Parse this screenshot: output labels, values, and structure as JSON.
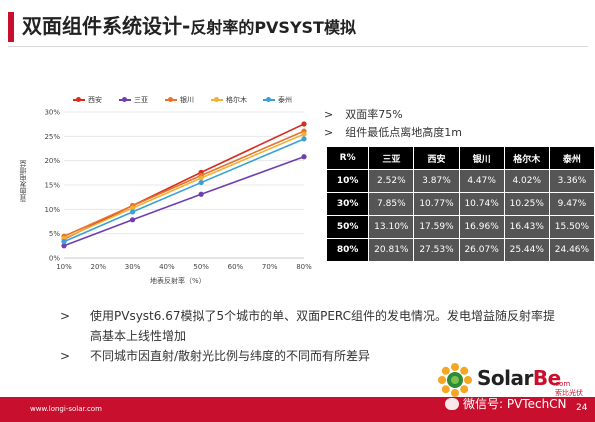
{
  "slide": {
    "title_main": "双面组件系统设计-",
    "title_sub": "反射率的PVSYST模拟",
    "footer_url": "www.longi-solar.com",
    "page_number": "24",
    "accent_color": "#c8102e"
  },
  "bullets": [
    {
      "arrow": ">",
      "text": "双面率75%"
    },
    {
      "arrow": ">",
      "text": "组件最低点离地高度1m"
    }
  ],
  "table": {
    "headers": [
      "R%",
      "三亚",
      "西安",
      "银川",
      "格尔木",
      "泰州"
    ],
    "rows": [
      {
        "label": "10%",
        "cells": [
          "2.52%",
          "3.87%",
          "4.47%",
          "4.02%",
          "3.36%"
        ]
      },
      {
        "label": "30%",
        "cells": [
          "7.85%",
          "10.77%",
          "10.74%",
          "10.25%",
          "9.47%"
        ]
      },
      {
        "label": "50%",
        "cells": [
          "13.10%",
          "17.59%",
          "16.96%",
          "16.43%",
          "15.50%"
        ]
      },
      {
        "label": "80%",
        "cells": [
          "20.81%",
          "27.53%",
          "26.07%",
          "25.44%",
          "24.46%"
        ]
      }
    ]
  },
  "notes": [
    {
      "arrow": ">",
      "text": "使用PVsyst6.67模拟了5个城市的单、双面PERC组件的发电情况。发电增益随反射率提",
      "cont": "高基本上线性增加"
    },
    {
      "arrow": ">",
      "text": "不同城市因直射/散射光比例与纬度的不同而有所差异",
      "cont": ""
    }
  ],
  "logo": {
    "brand_a": "Solar",
    "brand_b": "Be",
    "com": ".com",
    "cn": "索比光伏网",
    "wechat": "微信号: PVTechCN"
  },
  "chart_data": {
    "type": "line",
    "x": [
      10,
      30,
      50,
      80
    ],
    "xticks": [
      "10%",
      "20%",
      "30%",
      "40%",
      "50%",
      "60%",
      "70%",
      "80%"
    ],
    "yticks": [
      "0%",
      "5%",
      "10%",
      "15%",
      "20%",
      "25%",
      "30%"
    ],
    "xlim": [
      10,
      80
    ],
    "ylim": [
      0,
      30
    ],
    "xlabel": "地表反射率（%）",
    "ylabel": "背面发电增益",
    "legend_position": "top",
    "grid": true,
    "series": [
      {
        "name": "西安",
        "color": "#d62d20",
        "values": [
          3.87,
          10.77,
          17.59,
          27.53
        ]
      },
      {
        "name": "三亚",
        "color": "#6f3fb0",
        "values": [
          2.52,
          7.85,
          13.1,
          20.81
        ]
      },
      {
        "name": "银川",
        "color": "#e8742a",
        "values": [
          4.47,
          10.74,
          16.96,
          26.07
        ]
      },
      {
        "name": "格尔木",
        "color": "#f2b134",
        "values": [
          4.02,
          10.25,
          16.43,
          25.44
        ]
      },
      {
        "name": "泰州",
        "color": "#3aa0d8",
        "values": [
          3.36,
          9.47,
          15.5,
          24.46
        ]
      }
    ]
  }
}
